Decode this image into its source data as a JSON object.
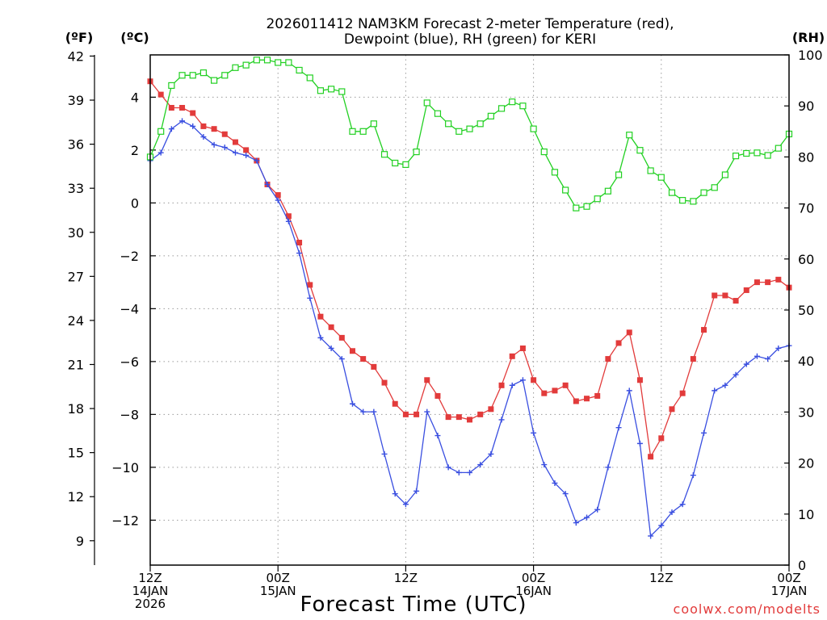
{
  "chart_data": {
    "type": "line",
    "title": "2026011412 NAM3KM Forecast 2-meter Temperature (red),",
    "subtitle": "Dewpoint (blue), RH (green) for KERI",
    "xlabel": "Forecast Time (UTC)",
    "credit": "coolwx.com/modelts",
    "units": {
      "fahrenheit": "(ºF)",
      "celsius": "(ºC)",
      "rh": "(RH)"
    },
    "x": [
      0,
      1,
      2,
      3,
      4,
      5,
      6,
      7,
      8,
      9,
      10,
      11,
      12,
      13,
      14,
      15,
      16,
      17,
      18,
      19,
      20,
      21,
      22,
      23,
      24,
      25,
      26,
      27,
      28,
      29,
      30,
      31,
      32,
      33,
      34,
      35,
      36,
      37,
      38,
      39,
      40,
      41,
      42,
      43,
      44,
      45,
      46,
      47,
      48,
      49,
      50,
      51,
      52,
      53,
      54,
      55,
      56,
      57,
      58,
      59,
      60
    ],
    "xlim": [
      0,
      60
    ],
    "x_ticks": [
      {
        "x": 0,
        "lines": [
          "12Z",
          "14JAN",
          "2026"
        ]
      },
      {
        "x": 12,
        "lines": [
          "00Z",
          "15JAN"
        ]
      },
      {
        "x": 24,
        "lines": [
          "12Z"
        ]
      },
      {
        "x": 36,
        "lines": [
          "00Z",
          "16JAN"
        ]
      },
      {
        "x": 48,
        "lines": [
          "12Z"
        ]
      },
      {
        "x": 60,
        "lines": [
          "00Z",
          "17JAN"
        ]
      }
    ],
    "celsius_axis": {
      "ylim": [
        -13.7,
        5.6
      ],
      "ticks": [
        4,
        2,
        0,
        -2,
        -4,
        -6,
        -8,
        -10,
        -12
      ]
    },
    "fahrenheit_axis": {
      "ticks": [
        42,
        39,
        36,
        33,
        30,
        27,
        24,
        21,
        18,
        15,
        12,
        9
      ]
    },
    "rh_axis": {
      "ylim": [
        0,
        100
      ],
      "ticks": [
        0,
        10,
        20,
        30,
        40,
        50,
        60,
        70,
        80,
        90,
        100
      ]
    },
    "series": [
      {
        "name": "Temperature",
        "axis": "celsius",
        "color": "#e23b3b",
        "marker": "filled-square",
        "values": [
          4.6,
          4.1,
          3.6,
          3.6,
          3.4,
          2.9,
          2.8,
          2.6,
          2.3,
          2.0,
          1.6,
          0.7,
          0.3,
          -0.5,
          -1.5,
          -3.1,
          -4.3,
          -4.7,
          -5.1,
          -5.6,
          -5.9,
          -6.2,
          -6.8,
          -7.6,
          -8.0,
          -8.0,
          -6.7,
          -7.3,
          -8.1,
          -8.1,
          -8.2,
          -8.0,
          -7.8,
          -6.9,
          -5.8,
          -5.5,
          -6.7,
          -7.2,
          -7.1,
          -6.9,
          -7.5,
          -7.4,
          -7.3,
          -5.9,
          -5.3,
          -4.9,
          -6.7,
          -9.6,
          -8.9,
          -7.8,
          -7.2,
          -5.9,
          -4.8,
          -3.5,
          -3.5,
          -3.7,
          -3.3,
          -3.0,
          -3.0,
          -2.9,
          -3.2
        ]
      },
      {
        "name": "Dewpoint",
        "axis": "celsius",
        "color": "#3a4fe0",
        "marker": "plus",
        "values": [
          1.6,
          1.9,
          2.8,
          3.1,
          2.9,
          2.5,
          2.2,
          2.1,
          1.9,
          1.8,
          1.6,
          0.7,
          0.1,
          -0.7,
          -1.9,
          -3.6,
          -5.1,
          -5.5,
          -5.9,
          -7.6,
          -7.9,
          -7.9,
          -9.5,
          -11.0,
          -11.4,
          -10.9,
          -7.9,
          -8.8,
          -10.0,
          -10.2,
          -10.2,
          -9.9,
          -9.5,
          -8.2,
          -6.9,
          -6.7,
          -8.7,
          -9.9,
          -10.6,
          -11.0,
          -12.1,
          -11.9,
          -11.6,
          -10.0,
          -8.5,
          -7.1,
          -9.1,
          -12.6,
          -12.2,
          -11.7,
          -11.4,
          -10.3,
          -8.7,
          -7.1,
          -6.9,
          -6.5,
          -6.1,
          -5.8,
          -5.9,
          -5.5,
          -5.4
        ]
      },
      {
        "name": "RH",
        "axis": "rh",
        "color": "#22d022",
        "marker": "open-square",
        "values": [
          80,
          85,
          94,
          96,
          96,
          96.5,
          95,
          96,
          97.5,
          98,
          99,
          99,
          98.5,
          98.5,
          97,
          95.5,
          93,
          93.3,
          92.8,
          85,
          85,
          86.5,
          80.5,
          78.8,
          78.5,
          81,
          90.6,
          88.5,
          86.5,
          85,
          85.5,
          86.5,
          88,
          89.5,
          90.8,
          90,
          85.5,
          81,
          77,
          73.5,
          70,
          70.3,
          71.8,
          73.3,
          76.5,
          84.3,
          81.3,
          77.3,
          76,
          73,
          71.5,
          71.3,
          73,
          74,
          76.5,
          80.2,
          80.7,
          80.8,
          80.3,
          81.7,
          84.5
        ]
      }
    ]
  }
}
